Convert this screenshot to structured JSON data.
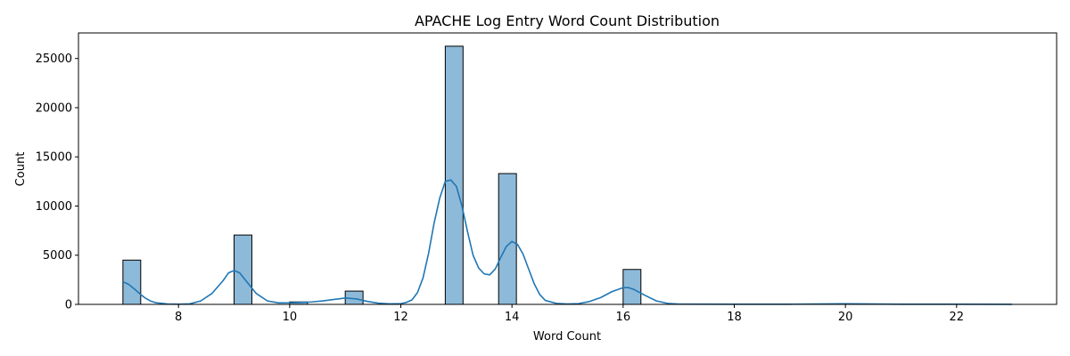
{
  "chart_data": {
    "type": "histogram",
    "title": "APACHE Log Entry Word Count Distribution",
    "xlabel": "Word Count",
    "ylabel": "Count",
    "xlim": [
      6.2,
      23.8
    ],
    "ylim": [
      0,
      27600
    ],
    "xticks": [
      8,
      10,
      12,
      14,
      16,
      18,
      20,
      22
    ],
    "yticks": [
      0,
      5000,
      10000,
      15000,
      20000,
      25000
    ],
    "bin_width": 0.32,
    "bars": [
      {
        "x": 7.0,
        "count": 4500
      },
      {
        "x": 9.0,
        "count": 7050
      },
      {
        "x": 10.0,
        "count": 250
      },
      {
        "x": 11.0,
        "count": 1350
      },
      {
        "x": 12.8,
        "count": 26250
      },
      {
        "x": 13.76,
        "count": 13300
      },
      {
        "x": 16.0,
        "count": 3550
      }
    ],
    "kde": {
      "x": [
        7.0,
        7.1,
        7.2,
        7.3,
        7.4,
        7.5,
        7.6,
        7.8,
        8.0,
        8.2,
        8.4,
        8.6,
        8.8,
        8.9,
        9.0,
        9.1,
        9.2,
        9.4,
        9.6,
        9.8,
        10.0,
        10.2,
        10.4,
        10.6,
        10.8,
        11.0,
        11.2,
        11.4,
        11.6,
        11.8,
        12.0,
        12.1,
        12.2,
        12.3,
        12.4,
        12.5,
        12.6,
        12.7,
        12.8,
        12.9,
        13.0,
        13.1,
        13.2,
        13.3,
        13.4,
        13.5,
        13.6,
        13.7,
        13.8,
        13.9,
        14.0,
        14.1,
        14.2,
        14.3,
        14.4,
        14.5,
        14.6,
        14.8,
        15.0,
        15.2,
        15.4,
        15.6,
        15.8,
        16.0,
        16.1,
        16.2,
        16.4,
        16.6,
        16.8,
        17.0,
        18.0,
        19.0,
        20.0,
        21.0,
        22.0,
        23.0
      ],
      "y": [
        2300,
        2050,
        1600,
        1100,
        650,
        330,
        160,
        40,
        20,
        50,
        350,
        1100,
        2400,
        3200,
        3450,
        3200,
        2500,
        1100,
        350,
        150,
        160,
        200,
        250,
        360,
        500,
        650,
        560,
        300,
        120,
        50,
        80,
        200,
        450,
        1200,
        2700,
        5200,
        8300,
        10800,
        12500,
        12650,
        12000,
        10000,
        7400,
        5000,
        3700,
        3100,
        3000,
        3600,
        4800,
        5900,
        6400,
        6100,
        5100,
        3600,
        2100,
        1000,
        400,
        100,
        40,
        80,
        300,
        700,
        1300,
        1700,
        1700,
        1500,
        900,
        350,
        100,
        30,
        20,
        20,
        60,
        20,
        20,
        10
      ]
    },
    "bar_color": "#8ebad9",
    "bar_edge": "#000000",
    "line_color": "#1f77b4",
    "grid": false
  }
}
